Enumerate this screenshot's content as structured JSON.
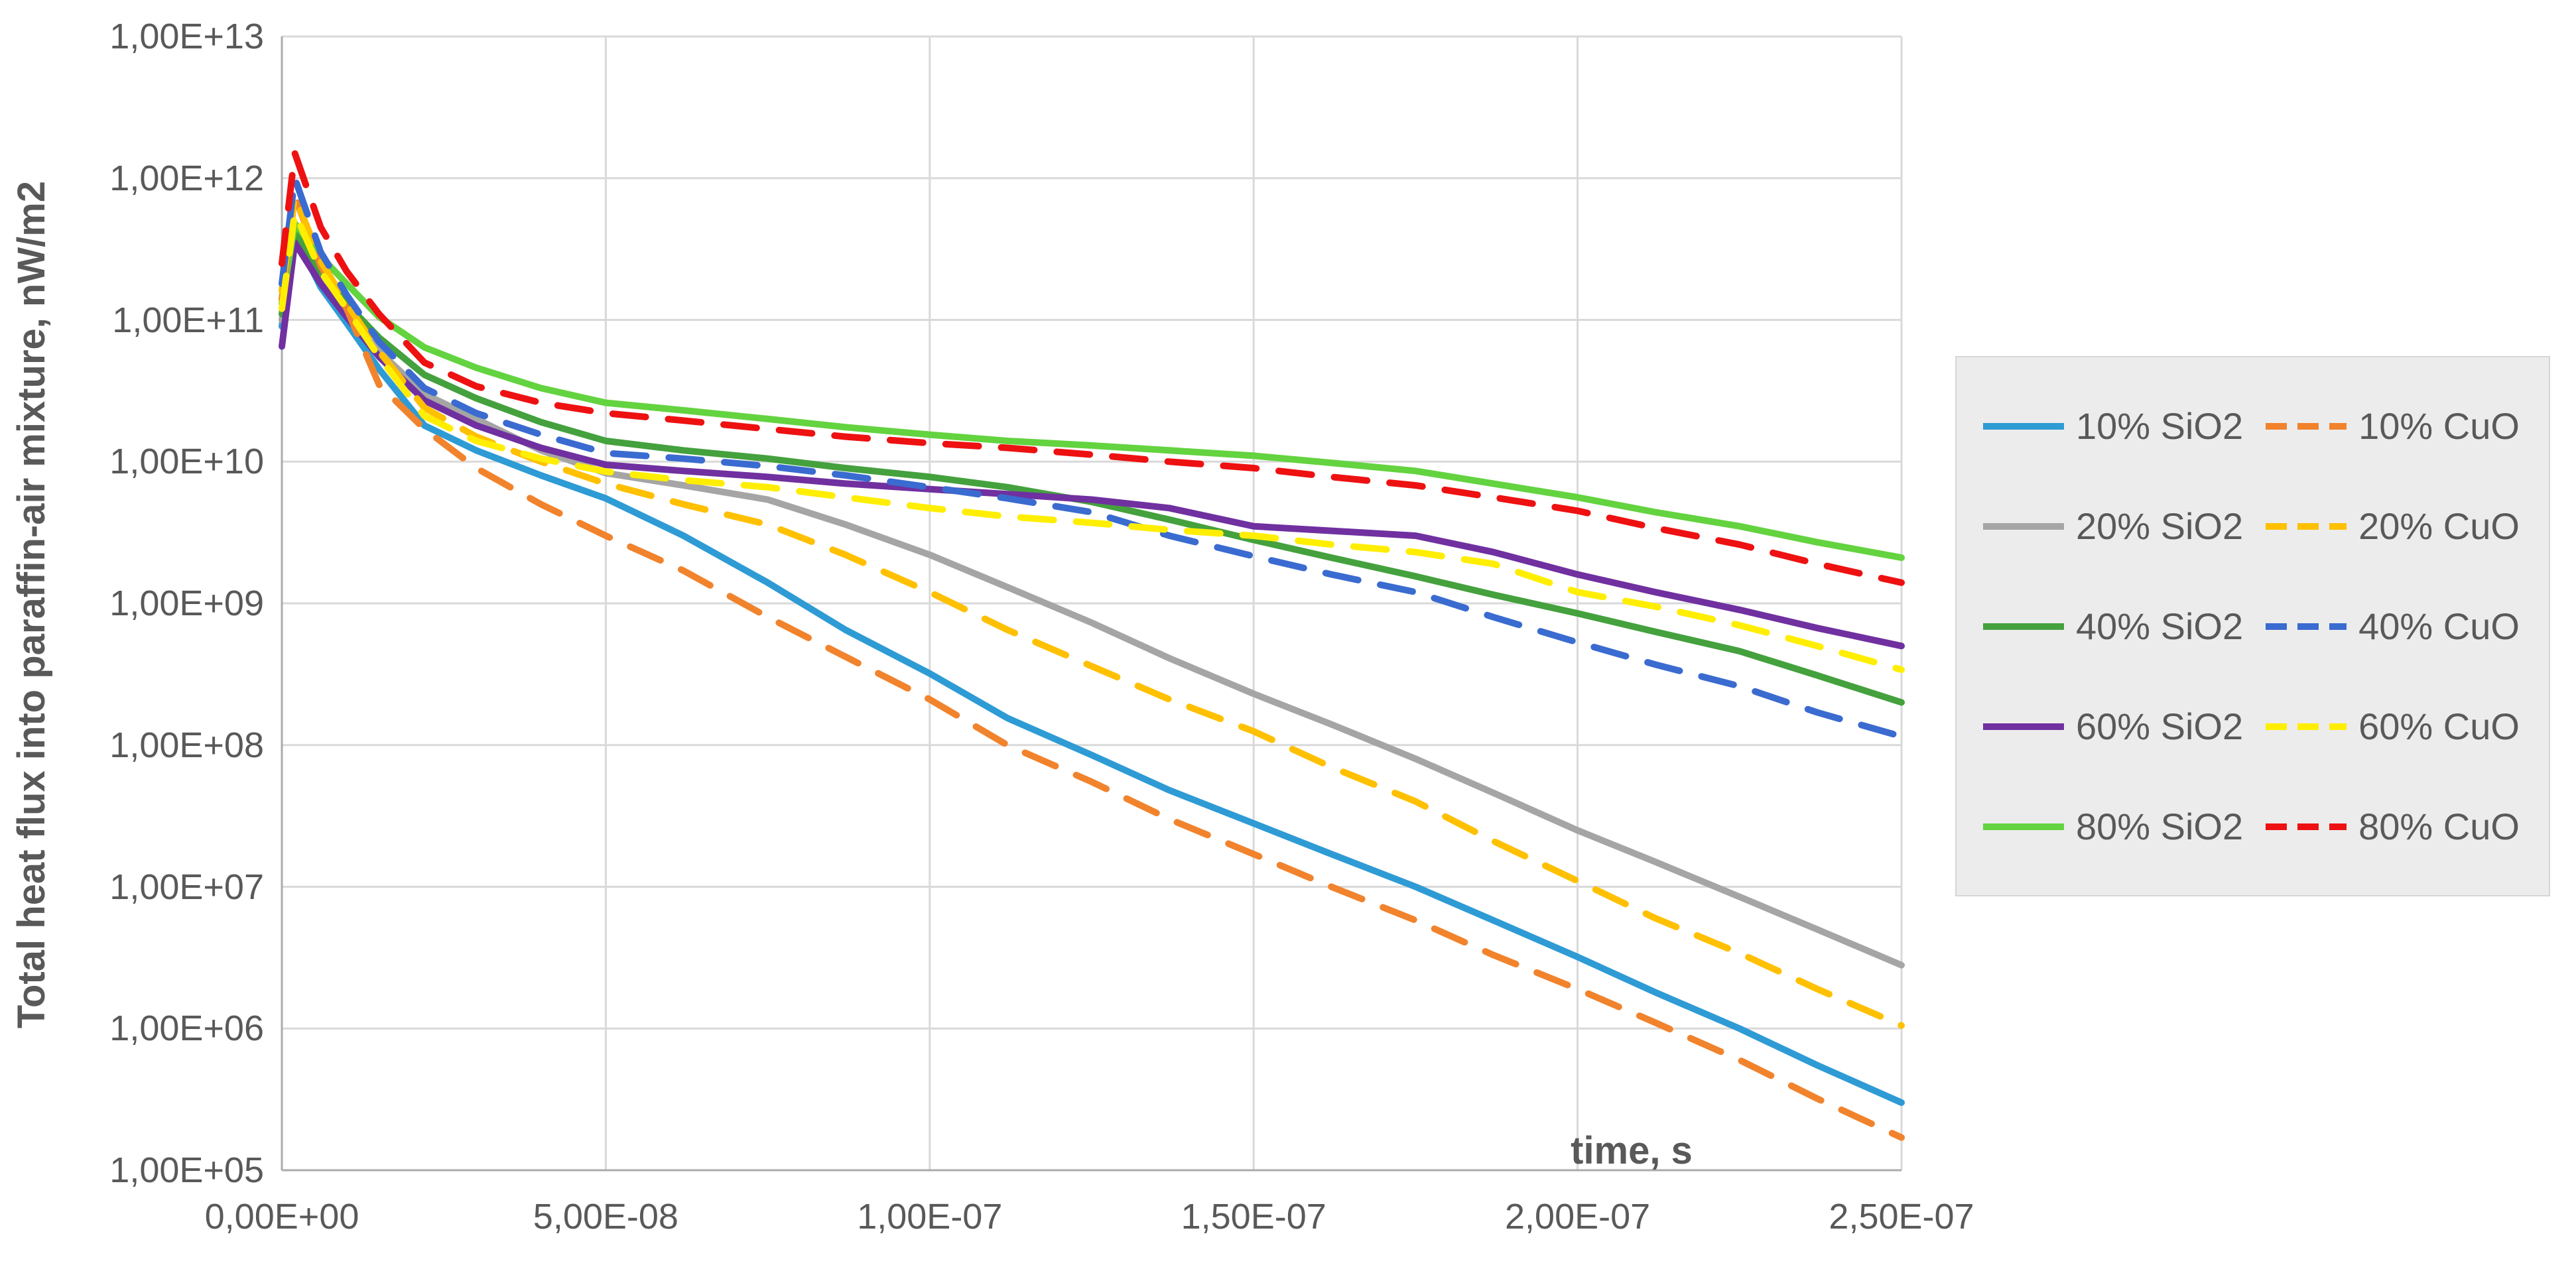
{
  "chart_data": {
    "type": "line",
    "title": "",
    "xlabel": "time, s",
    "ylabel": "Total heat flux  into paraffin-air mixture, nW/m2",
    "x_scale": "linear",
    "y_scale": "log",
    "xlim": [
      0,
      2.5e-07
    ],
    "ylim": [
      100000.0,
      10000000000000.0
    ],
    "grid": true,
    "legend_position": "right",
    "tick_label_color": "#595959",
    "gridline_color": "#d9d9d9",
    "axis_line_color": "#ababab",
    "x_ticks": [
      {
        "v": 0,
        "label": "0,00E+00"
      },
      {
        "v": 5e-08,
        "label": "5,00E-08"
      },
      {
        "v": 1e-07,
        "label": "1,00E-07"
      },
      {
        "v": 1.5e-07,
        "label": "1,50E-07"
      },
      {
        "v": 2e-07,
        "label": "2,00E-07"
      },
      {
        "v": 2.5e-07,
        "label": "2,50E-07"
      }
    ],
    "y_ticks": [
      {
        "v": 10000000000000.0,
        "label": "1,00E+13"
      },
      {
        "v": 1000000000000.0,
        "label": "1,00E+12"
      },
      {
        "v": 100000000000.0,
        "label": "1,00E+11"
      },
      {
        "v": 10000000000.0,
        "label": "1,00E+10"
      },
      {
        "v": 1000000000.0,
        "label": "1,00E+09"
      },
      {
        "v": 100000000.0,
        "label": "1,00E+08"
      },
      {
        "v": 10000000.0,
        "label": "1,00E+07"
      },
      {
        "v": 1000000.0,
        "label": "1,00E+06"
      },
      {
        "v": 100000.0,
        "label": "1,00E+05"
      }
    ],
    "x": [
      0,
      2e-09,
      6e-09,
      1e-08,
      1.5e-08,
      2.2e-08,
      3e-08,
      4e-08,
      5e-08,
      6.2e-08,
      7.5e-08,
      8.7e-08,
      1e-07,
      1.12e-07,
      1.25e-07,
      1.37e-07,
      1.5e-07,
      1.62e-07,
      1.75e-07,
      1.87e-07,
      2e-07,
      2.12e-07,
      2.25e-07,
      2.37e-07,
      2.5e-07
    ],
    "series": [
      {
        "name": "10% SiO2",
        "color": "#2E9BD5",
        "dashed": false,
        "values": [
          90000000000.0,
          400000000000.0,
          170000000000.0,
          95000000000.0,
          45000000000.0,
          18000000000.0,
          12000000000.0,
          8000000000.0,
          5500000000.0,
          3000000000.0,
          1400000000.0,
          650000000.0,
          320000000.0,
          155000000.0,
          85000000.0,
          48000000.0,
          28000000.0,
          17000000.0,
          10000000.0,
          5800000.0,
          3200000.0,
          1800000.0,
          1000000.0,
          550000.0,
          300000.0
        ]
      },
      {
        "name": "20% SiO2",
        "color": "#A5A5A5",
        "dashed": false,
        "values": [
          100000000000.0,
          380000000000.0,
          190000000000.0,
          110000000000.0,
          60000000000.0,
          30000000000.0,
          20000000000.0,
          12000000000.0,
          8300000000.0,
          6800000000.0,
          5400000000.0,
          3600000000.0,
          2200000000.0,
          1300000000.0,
          730000000.0,
          410000000.0,
          230000000.0,
          140000000.0,
          80000000.0,
          46000000.0,
          25000000.0,
          15000000.0,
          8500000.0,
          5000000.0,
          2800000.0
        ]
      },
      {
        "name": "40% SiO2",
        "color": "#44A13D",
        "dashed": false,
        "values": [
          110000000000.0,
          420000000000.0,
          220000000000.0,
          130000000000.0,
          75000000000.0,
          41000000000.0,
          28000000000.0,
          19000000000.0,
          14000000000.0,
          12000000000.0,
          10500000000.0,
          9000000000.0,
          7800000000.0,
          6600000000.0,
          5200000000.0,
          3900000000.0,
          2800000000.0,
          2100000000.0,
          1550000000.0,
          1150000000.0,
          850000000.0,
          630000000.0,
          460000000.0,
          310000000.0,
          200000000.0
        ]
      },
      {
        "name": "60% SiO2",
        "color": "#7030A0",
        "dashed": false,
        "values": [
          65000000000.0,
          350000000000.0,
          180000000000.0,
          105000000000.0,
          55000000000.0,
          27000000000.0,
          18000000000.0,
          12500000000.0,
          9500000000.0,
          8600000000.0,
          7800000000.0,
          7000000000.0,
          6400000000.0,
          5900000000.0,
          5400000000.0,
          4700000000.0,
          3500000000.0,
          3250000000.0,
          3000000000.0,
          2300000000.0,
          1600000000.0,
          1200000000.0,
          900000000.0,
          670000000.0,
          500000000.0
        ]
      },
      {
        "name": "80% SiO2",
        "color": "#63D33F",
        "dashed": false,
        "values": [
          130000000000.0,
          480000000000.0,
          280000000000.0,
          180000000000.0,
          105000000000.0,
          64000000000.0,
          46000000000.0,
          33000000000.0,
          26000000000.0,
          23000000000.0,
          20000000000.0,
          17500000000.0,
          15500000000.0,
          14000000000.0,
          13000000000.0,
          12000000000.0,
          11000000000.0,
          9800000000.0,
          8600000000.0,
          7000000000.0,
          5600000000.0,
          4400000000.0,
          3500000000.0,
          2700000000.0,
          2100000000.0
        ]
      },
      {
        "name": "10% CuO",
        "color": "#F1832D",
        "dashed": true,
        "values": [
          140000000000.0,
          750000000000.0,
          240000000000.0,
          120000000000.0,
          35000000000.0,
          17000000000.0,
          9000000000.0,
          5000000000.0,
          3000000000.0,
          1700000000.0,
          800000000.0,
          420000000.0,
          210000000.0,
          100000000.0,
          55000000.0,
          30000000.0,
          17000000.0,
          10000000.0,
          5800000.0,
          3300000.0,
          1900000.0,
          1100000.0,
          600000.0,
          320000.0,
          170000.0
        ]
      },
      {
        "name": "20% CuO",
        "color": "#FFC000",
        "dashed": true,
        "values": [
          160000000000.0,
          750000000000.0,
          260000000000.0,
          130000000000.0,
          60000000000.0,
          24000000000.0,
          15000000000.0,
          10000000000.0,
          7000000000.0,
          5000000000.0,
          3600000000.0,
          2200000000.0,
          1200000000.0,
          650000000.0,
          360000000.0,
          210000000.0,
          125000000.0,
          70000000.0,
          40000000.0,
          21000000.0,
          11000000.0,
          6000000.0,
          3400000.0,
          1900000.0,
          1050000.0
        ]
      },
      {
        "name": "40% CuO",
        "color": "#3A6BD0",
        "dashed": true,
        "values": [
          180000000000.0,
          1000000000000.0,
          300000000000.0,
          150000000000.0,
          70000000000.0,
          33000000000.0,
          22000000000.0,
          15500000000.0,
          11500000000.0,
          10500000000.0,
          9300000000.0,
          8000000000.0,
          6600000000.0,
          5500000000.0,
          4400000000.0,
          3000000000.0,
          2150000000.0,
          1600000000.0,
          1200000000.0,
          800000000.0,
          530000000.0,
          370000000.0,
          260000000.0,
          170000000.0,
          115000000.0
        ]
      },
      {
        "name": "60% CuO",
        "color": "#FFEE00",
        "dashed": true,
        "values": [
          120000000000.0,
          570000000000.0,
          220000000000.0,
          120000000000.0,
          55000000000.0,
          21000000000.0,
          14000000000.0,
          10500000000.0,
          8500000000.0,
          7400000000.0,
          6600000000.0,
          5600000000.0,
          4700000000.0,
          4100000000.0,
          3700000000.0,
          3300000000.0,
          3000000000.0,
          2600000000.0,
          2300000000.0,
          1900000000.0,
          1200000000.0,
          950000000.0,
          700000000.0,
          500000000.0,
          340000000.0
        ]
      },
      {
        "name": "80% CuO",
        "color": "#EE1111",
        "dashed": true,
        "values": [
          250000000000.0,
          1500000000000.0,
          450000000000.0,
          220000000000.0,
          110000000000.0,
          50000000000.0,
          34000000000.0,
          26000000000.0,
          22000000000.0,
          19500000000.0,
          17000000000.0,
          15000000000.0,
          13500000000.0,
          12500000000.0,
          11200000000.0,
          10000000000.0,
          9000000000.0,
          7800000000.0,
          6800000000.0,
          5600000000.0,
          4500000000.0,
          3400000000.0,
          2600000000.0,
          1900000000.0,
          1400000000.0
        ]
      }
    ]
  }
}
